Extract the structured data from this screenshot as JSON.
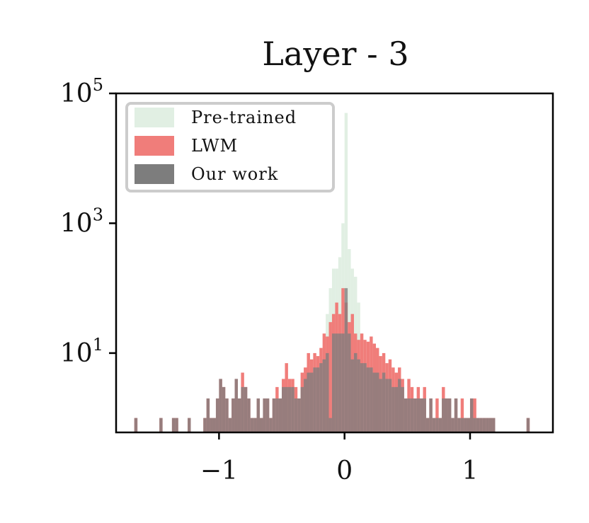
{
  "chart_data": {
    "type": "bar",
    "title": "Layer - 3",
    "xlabel": "",
    "ylabel": "",
    "x_ticks": [
      {
        "value": -1,
        "label": "−1"
      },
      {
        "value": 0,
        "label": "0"
      },
      {
        "value": 1,
        "label": "1"
      }
    ],
    "y_scale": "log",
    "y_ticks": [
      {
        "value": 10,
        "base": "10",
        "exp": "1"
      },
      {
        "value": 1000,
        "base": "10",
        "exp": "3"
      },
      {
        "value": 100000,
        "base": "10",
        "exp": "5"
      }
    ],
    "xlim": [
      -1.82,
      1.66
    ],
    "ylim": [
      0.6,
      100000
    ],
    "grid": false,
    "legend": {
      "position": "top-left"
    },
    "series": [
      {
        "name": "Pre-trained",
        "color": "#e1efe3",
        "bin_width": 0.025,
        "bars": [
          {
            "x": -0.1375,
            "y": 40
          },
          {
            "x": -0.1125,
            "y": 100
          },
          {
            "x": -0.0875,
            "y": 200
          },
          {
            "x": -0.0625,
            "y": 200
          },
          {
            "x": -0.0375,
            "y": 300
          },
          {
            "x": -0.0125,
            "y": 1000
          },
          {
            "x": 0.0125,
            "y": 50000
          },
          {
            "x": 0.0375,
            "y": 400
          },
          {
            "x": 0.0625,
            "y": 200
          },
          {
            "x": 0.0875,
            "y": 150
          },
          {
            "x": 0.1125,
            "y": 60
          },
          {
            "x": 0.1375,
            "y": 20
          }
        ]
      },
      {
        "name": "LWM",
        "color": "#f07d7a",
        "bin_width": 0.025,
        "bars": [
          {
            "x": -1.6625,
            "y": 1
          },
          {
            "x": -1.4625,
            "y": 1
          },
          {
            "x": -1.3625,
            "y": 1
          },
          {
            "x": -1.3375,
            "y": 1
          },
          {
            "x": -1.2375,
            "y": 1
          },
          {
            "x": -1.1125,
            "y": 1
          },
          {
            "x": -1.0875,
            "y": 2
          },
          {
            "x": -1.0625,
            "y": 1
          },
          {
            "x": -1.0375,
            "y": 1
          },
          {
            "x": -1.0125,
            "y": 2
          },
          {
            "x": -0.9875,
            "y": 4
          },
          {
            "x": -0.9625,
            "y": 3
          },
          {
            "x": -0.9375,
            "y": 2
          },
          {
            "x": -0.9125,
            "y": 1
          },
          {
            "x": -0.8875,
            "y": 2
          },
          {
            "x": -0.8625,
            "y": 4
          },
          {
            "x": -0.8375,
            "y": 2
          },
          {
            "x": -0.8125,
            "y": 5
          },
          {
            "x": -0.7875,
            "y": 3
          },
          {
            "x": -0.7625,
            "y": 2
          },
          {
            "x": -0.7375,
            "y": 1
          },
          {
            "x": -0.7125,
            "y": 1
          },
          {
            "x": -0.6875,
            "y": 2
          },
          {
            "x": -0.6625,
            "y": 1
          },
          {
            "x": -0.6375,
            "y": 2
          },
          {
            "x": -0.6125,
            "y": 2
          },
          {
            "x": -0.5875,
            "y": 1
          },
          {
            "x": -0.5625,
            "y": 2
          },
          {
            "x": -0.5375,
            "y": 3
          },
          {
            "x": -0.5125,
            "y": 2
          },
          {
            "x": -0.4875,
            "y": 4
          },
          {
            "x": -0.4625,
            "y": 7
          },
          {
            "x": -0.4375,
            "y": 4
          },
          {
            "x": -0.4125,
            "y": 4
          },
          {
            "x": -0.3875,
            "y": 3
          },
          {
            "x": -0.3625,
            "y": 2
          },
          {
            "x": -0.3375,
            "y": 5
          },
          {
            "x": -0.3125,
            "y": 6
          },
          {
            "x": -0.2875,
            "y": 10
          },
          {
            "x": -0.2625,
            "y": 8
          },
          {
            "x": -0.2375,
            "y": 10
          },
          {
            "x": -0.2125,
            "y": 9
          },
          {
            "x": -0.1875,
            "y": 12
          },
          {
            "x": -0.1625,
            "y": 20
          },
          {
            "x": -0.1375,
            "y": 18
          },
          {
            "x": -0.1125,
            "y": 30
          },
          {
            "x": -0.0875,
            "y": 40
          },
          {
            "x": -0.0625,
            "y": 60
          },
          {
            "x": -0.0375,
            "y": 40
          },
          {
            "x": -0.0125,
            "y": 100
          },
          {
            "x": 0.0125,
            "y": 60
          },
          {
            "x": 0.0375,
            "y": 30
          },
          {
            "x": 0.0625,
            "y": 40
          },
          {
            "x": 0.0875,
            "y": 20
          },
          {
            "x": 0.1125,
            "y": 16
          },
          {
            "x": 0.1375,
            "y": 20
          },
          {
            "x": 0.1625,
            "y": 16
          },
          {
            "x": 0.1875,
            "y": 15
          },
          {
            "x": 0.2125,
            "y": 18
          },
          {
            "x": 0.2375,
            "y": 14
          },
          {
            "x": 0.2625,
            "y": 12
          },
          {
            "x": 0.2875,
            "y": 9
          },
          {
            "x": 0.3125,
            "y": 10
          },
          {
            "x": 0.3375,
            "y": 7
          },
          {
            "x": 0.3625,
            "y": 8
          },
          {
            "x": 0.3875,
            "y": 6
          },
          {
            "x": 0.4125,
            "y": 5
          },
          {
            "x": 0.4375,
            "y": 6
          },
          {
            "x": 0.4625,
            "y": 4
          },
          {
            "x": 0.4875,
            "y": 2
          },
          {
            "x": 0.5125,
            "y": 4
          },
          {
            "x": 0.5375,
            "y": 3
          },
          {
            "x": 0.5625,
            "y": 2
          },
          {
            "x": 0.5875,
            "y": 3
          },
          {
            "x": 0.6125,
            "y": 2
          },
          {
            "x": 0.6375,
            "y": 3
          },
          {
            "x": 0.6625,
            "y": 1
          },
          {
            "x": 0.6875,
            "y": 2
          },
          {
            "x": 0.7125,
            "y": 1
          },
          {
            "x": 0.7375,
            "y": 2
          },
          {
            "x": 0.7625,
            "y": 1
          },
          {
            "x": 0.7875,
            "y": 3
          },
          {
            "x": 0.8125,
            "y": 2
          },
          {
            "x": 0.8375,
            "y": 2
          },
          {
            "x": 0.8625,
            "y": 1
          },
          {
            "x": 0.8875,
            "y": 2
          },
          {
            "x": 0.9125,
            "y": 1
          },
          {
            "x": 0.9375,
            "y": 2
          },
          {
            "x": 0.9625,
            "y": 1
          },
          {
            "x": 0.9875,
            "y": 1
          },
          {
            "x": 1.0125,
            "y": 2
          },
          {
            "x": 1.0375,
            "y": 2
          },
          {
            "x": 1.0625,
            "y": 1
          },
          {
            "x": 1.0875,
            "y": 1
          },
          {
            "x": 1.1125,
            "y": 1
          },
          {
            "x": 1.1375,
            "y": 1
          },
          {
            "x": 1.1625,
            "y": 1
          },
          {
            "x": 1.1875,
            "y": 1
          },
          {
            "x": 1.4625,
            "y": 1
          }
        ]
      },
      {
        "name": "Our work",
        "color": "#7d7d7d",
        "bin_width": 0.025,
        "bars": [
          {
            "x": -1.6625,
            "y": 1
          },
          {
            "x": -1.4625,
            "y": 1
          },
          {
            "x": -1.3625,
            "y": 1
          },
          {
            "x": -1.3375,
            "y": 1
          },
          {
            "x": -1.2375,
            "y": 1
          },
          {
            "x": -1.1125,
            "y": 1
          },
          {
            "x": -1.0875,
            "y": 2
          },
          {
            "x": -1.0625,
            "y": 1
          },
          {
            "x": -1.0375,
            "y": 1
          },
          {
            "x": -1.0125,
            "y": 2
          },
          {
            "x": -0.9875,
            "y": 4
          },
          {
            "x": -0.9625,
            "y": 3
          },
          {
            "x": -0.9375,
            "y": 2
          },
          {
            "x": -0.9125,
            "y": 1
          },
          {
            "x": -0.8875,
            "y": 2
          },
          {
            "x": -0.8625,
            "y": 4
          },
          {
            "x": -0.8375,
            "y": 2
          },
          {
            "x": -0.8125,
            "y": 3
          },
          {
            "x": -0.7875,
            "y": 3
          },
          {
            "x": -0.7625,
            "y": 2
          },
          {
            "x": -0.7375,
            "y": 1
          },
          {
            "x": -0.7125,
            "y": 1
          },
          {
            "x": -0.6875,
            "y": 2
          },
          {
            "x": -0.6625,
            "y": 1
          },
          {
            "x": -0.6375,
            "y": 2
          },
          {
            "x": -0.6125,
            "y": 2
          },
          {
            "x": -0.5875,
            "y": 1
          },
          {
            "x": -0.5625,
            "y": 2
          },
          {
            "x": -0.5375,
            "y": 2
          },
          {
            "x": -0.5125,
            "y": 2
          },
          {
            "x": -0.4875,
            "y": 3
          },
          {
            "x": -0.4625,
            "y": 3
          },
          {
            "x": -0.4375,
            "y": 3
          },
          {
            "x": -0.4125,
            "y": 3
          },
          {
            "x": -0.3875,
            "y": 2
          },
          {
            "x": -0.3625,
            "y": 2
          },
          {
            "x": -0.3375,
            "y": 3
          },
          {
            "x": -0.3125,
            "y": 4
          },
          {
            "x": -0.2875,
            "y": 5
          },
          {
            "x": -0.2625,
            "y": 5
          },
          {
            "x": -0.2375,
            "y": 6
          },
          {
            "x": -0.2125,
            "y": 6
          },
          {
            "x": -0.1875,
            "y": 7
          },
          {
            "x": -0.1625,
            "y": 8
          },
          {
            "x": -0.1375,
            "y": 10
          },
          {
            "x": -0.1125,
            "y": 1
          },
          {
            "x": -0.0875,
            "y": 20
          },
          {
            "x": -0.0625,
            "y": 20
          },
          {
            "x": -0.0375,
            "y": 20
          },
          {
            "x": -0.0125,
            "y": 20
          },
          {
            "x": 0.0125,
            "y": 100
          },
          {
            "x": 0.0375,
            "y": 20
          },
          {
            "x": 0.0625,
            "y": 8
          },
          {
            "x": 0.0875,
            "y": 10
          },
          {
            "x": 0.1125,
            "y": 8
          },
          {
            "x": 0.1375,
            "y": 7
          },
          {
            "x": 0.1625,
            "y": 7
          },
          {
            "x": 0.1875,
            "y": 6
          },
          {
            "x": 0.2125,
            "y": 6
          },
          {
            "x": 0.2375,
            "y": 5
          },
          {
            "x": 0.2625,
            "y": 5
          },
          {
            "x": 0.2875,
            "y": 4
          },
          {
            "x": 0.3125,
            "y": 5
          },
          {
            "x": 0.3375,
            "y": 4
          },
          {
            "x": 0.3625,
            "y": 4
          },
          {
            "x": 0.3875,
            "y": 3
          },
          {
            "x": 0.4125,
            "y": 3
          },
          {
            "x": 0.4375,
            "y": 4
          },
          {
            "x": 0.4625,
            "y": 3
          },
          {
            "x": 0.4875,
            "y": 2
          },
          {
            "x": 0.5125,
            "y": 2
          },
          {
            "x": 0.5375,
            "y": 2
          },
          {
            "x": 0.5625,
            "y": 2
          },
          {
            "x": 0.5875,
            "y": 2
          },
          {
            "x": 0.6125,
            "y": 2
          },
          {
            "x": 0.6375,
            "y": 2
          },
          {
            "x": 0.6625,
            "y": 1
          },
          {
            "x": 0.6875,
            "y": 2
          },
          {
            "x": 0.7125,
            "y": 1
          },
          {
            "x": 0.7375,
            "y": 1
          },
          {
            "x": 0.7625,
            "y": 1
          },
          {
            "x": 0.7875,
            "y": 2
          },
          {
            "x": 0.8125,
            "y": 2
          },
          {
            "x": 0.8375,
            "y": 2
          },
          {
            "x": 0.8625,
            "y": 1
          },
          {
            "x": 0.8875,
            "y": 2
          },
          {
            "x": 0.9125,
            "y": 1
          },
          {
            "x": 0.9375,
            "y": 1
          },
          {
            "x": 0.9625,
            "y": 1
          },
          {
            "x": 0.9875,
            "y": 1
          },
          {
            "x": 1.0125,
            "y": 2
          },
          {
            "x": 1.0375,
            "y": 1
          },
          {
            "x": 1.0625,
            "y": 1
          },
          {
            "x": 1.0875,
            "y": 1
          },
          {
            "x": 1.1125,
            "y": 1
          },
          {
            "x": 1.1375,
            "y": 1
          },
          {
            "x": 1.1625,
            "y": 1
          },
          {
            "x": 1.1875,
            "y": 1
          },
          {
            "x": 1.4625,
            "y": 1
          }
        ]
      }
    ]
  }
}
